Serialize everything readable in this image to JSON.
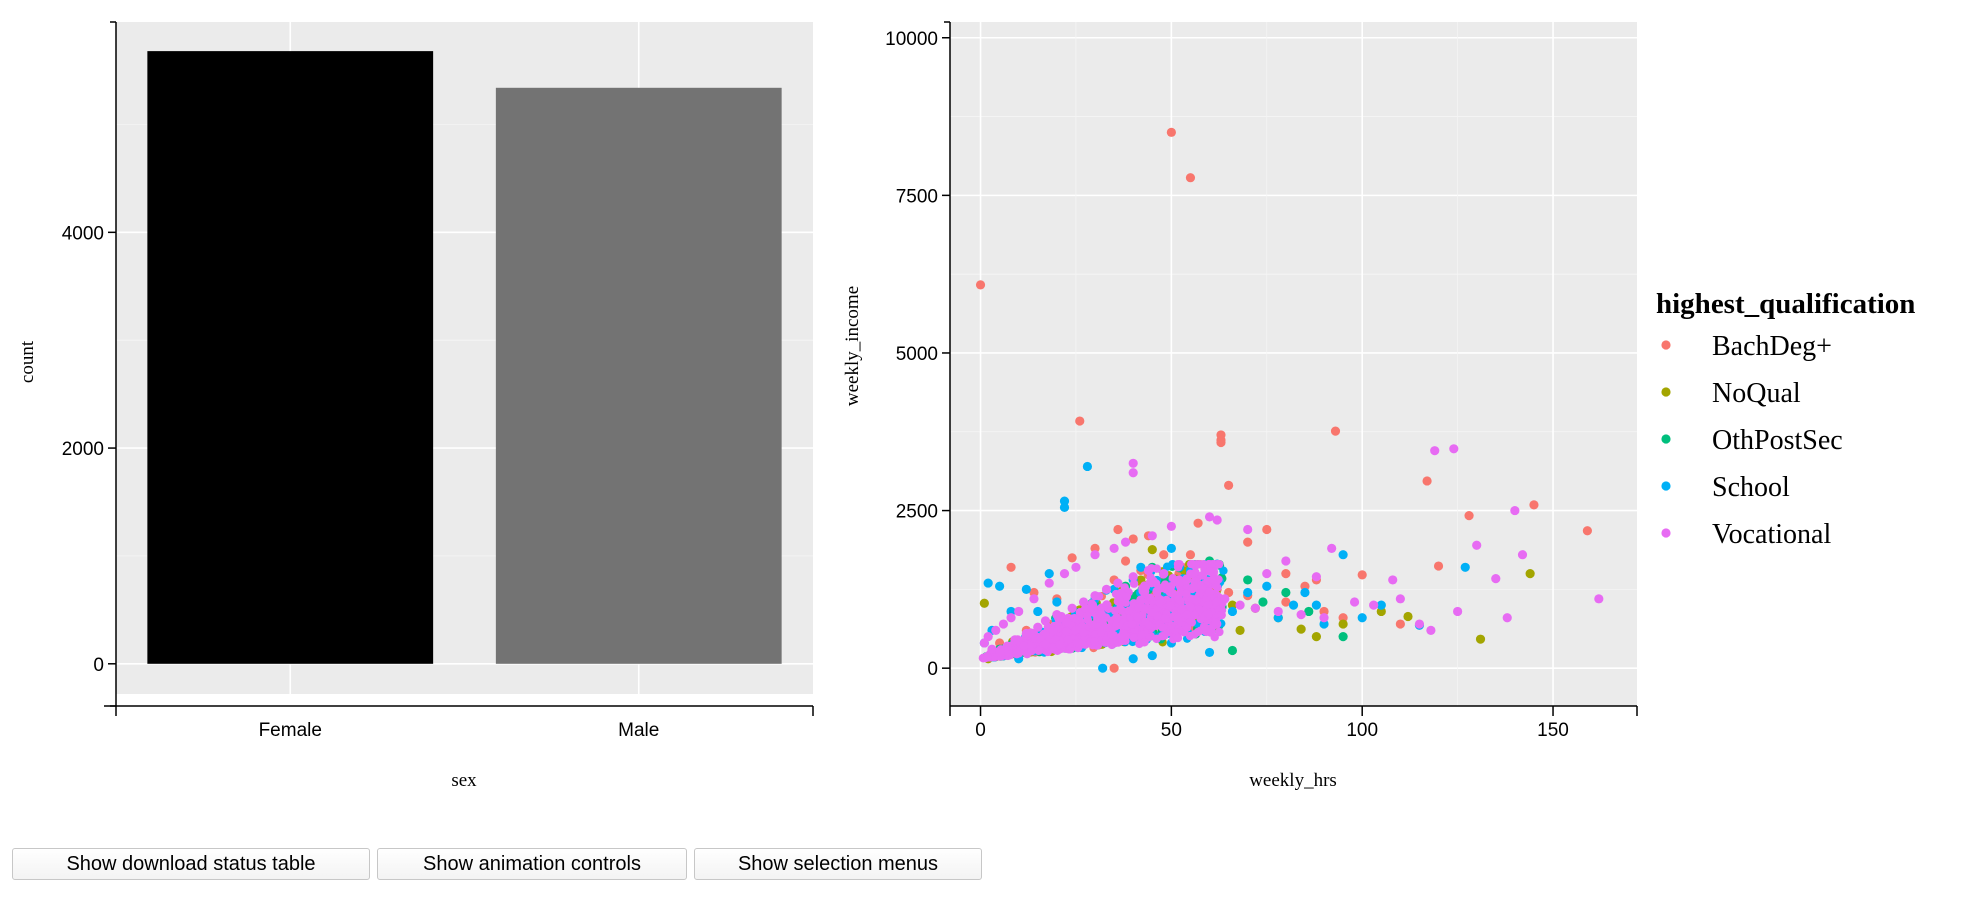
{
  "chart_data": [
    {
      "type": "bar",
      "categories": [
        "Female",
        "Male"
      ],
      "values": [
        5680,
        5340
      ],
      "fills": [
        "#000000",
        "#737373"
      ],
      "xlabel": "sex",
      "ylabel": "count",
      "yticks": [
        0,
        2000,
        4000
      ],
      "ylim": [
        -280,
        5950
      ],
      "grid": true
    },
    {
      "type": "scatter",
      "xlabel": "weekly_hrs",
      "ylabel": "weekly_income",
      "xticks": [
        0,
        50,
        100,
        150
      ],
      "yticks": [
        0,
        2500,
        5000,
        7500,
        10000
      ],
      "xlim": [
        -8,
        172
      ],
      "ylim": [
        -600,
        10250
      ],
      "grid": true,
      "legend": {
        "title": "highest_qualification",
        "position": "right"
      },
      "series": [
        {
          "name": "BachDeg+",
          "color": "#F8766D",
          "points": [
            [
              0,
              6080
            ],
            [
              50,
              8500
            ],
            [
              55,
              7780
            ],
            [
              26,
              3920
            ],
            [
              63,
              3700
            ],
            [
              63,
              3620
            ],
            [
              63,
              3580
            ],
            [
              93,
              3760
            ],
            [
              65,
              2900
            ],
            [
              117,
              2970
            ],
            [
              128,
              2420
            ],
            [
              145,
              2590
            ],
            [
              159,
              2180
            ],
            [
              57,
              2300
            ],
            [
              40,
              2050
            ],
            [
              100,
              1480
            ],
            [
              120,
              1620
            ],
            [
              36,
              2200
            ],
            [
              44,
              2100
            ],
            [
              30,
              1900
            ],
            [
              70,
              2000
            ],
            [
              75,
              2200
            ],
            [
              80,
              1500
            ],
            [
              85,
              1300
            ],
            [
              88,
              1400
            ],
            [
              60,
              1600
            ],
            [
              65,
              1200
            ],
            [
              24,
              1750
            ],
            [
              8,
              1600
            ],
            [
              14,
              1200
            ],
            [
              20,
              1100
            ],
            [
              35,
              1400
            ],
            [
              48,
              1800
            ],
            [
              52,
              1500
            ],
            [
              58,
              1350
            ],
            [
              70,
              1150
            ],
            [
              80,
              1050
            ],
            [
              90,
              900
            ],
            [
              95,
              800
            ],
            [
              110,
              700
            ],
            [
              35,
              0
            ],
            [
              45,
              950
            ],
            [
              28,
              800
            ],
            [
              18,
              700
            ],
            [
              12,
              600
            ],
            [
              5,
              400
            ],
            [
              38,
              1700
            ],
            [
              42,
              1550
            ],
            [
              55,
              1800
            ],
            [
              62,
              1250
            ]
          ]
        },
        {
          "name": "NoQual",
          "color": "#A3A500",
          "points": [
            [
              1,
              1030
            ],
            [
              45,
              1880
            ],
            [
              144,
              1500
            ],
            [
              131,
              460
            ],
            [
              105,
              900
            ],
            [
              95,
              700
            ],
            [
              88,
              500
            ],
            [
              78,
              800
            ],
            [
              68,
              600
            ],
            [
              60,
              1100
            ],
            [
              55,
              900
            ],
            [
              50,
              1200
            ],
            [
              40,
              800
            ],
            [
              35,
              650
            ],
            [
              30,
              600
            ],
            [
              25,
              500
            ],
            [
              20,
              450
            ],
            [
              15,
              400
            ],
            [
              10,
              300
            ],
            [
              5,
              200
            ],
            [
              2,
              150
            ],
            [
              72,
              950
            ],
            [
              84,
              620
            ],
            [
              112,
              820
            ],
            [
              66,
              1000
            ],
            [
              42,
              1400
            ],
            [
              38,
              1100
            ],
            [
              26,
              900
            ],
            [
              18,
              650
            ],
            [
              48,
              700
            ]
          ]
        },
        {
          "name": "OthPostSec",
          "color": "#00BF7D",
          "points": [
            [
              70,
              1400
            ],
            [
              80,
              1200
            ],
            [
              95,
              500
            ],
            [
              60,
              1700
            ],
            [
              55,
              1500
            ],
            [
              45,
              1600
            ],
            [
              38,
              1300
            ],
            [
              30,
              1000
            ],
            [
              25,
              800
            ],
            [
              20,
              650
            ],
            [
              15,
              500
            ],
            [
              10,
              400
            ],
            [
              5,
              300
            ],
            [
              66,
              280
            ],
            [
              52,
              900
            ],
            [
              42,
              1100
            ],
            [
              34,
              850
            ],
            [
              28,
              700
            ],
            [
              58,
              1250
            ],
            [
              74,
              1050
            ],
            [
              86,
              900
            ],
            [
              48,
              1350
            ],
            [
              22,
              600
            ],
            [
              12,
              450
            ]
          ]
        },
        {
          "name": "School",
          "color": "#00B0F6",
          "points": [
            [
              22,
              2650
            ],
            [
              22,
              2550
            ],
            [
              28,
              3200
            ],
            [
              42,
              1600
            ],
            [
              50,
              1900
            ],
            [
              55,
              1550
            ],
            [
              62,
              1650
            ],
            [
              75,
              1300
            ],
            [
              85,
              1200
            ],
            [
              95,
              1800
            ],
            [
              127,
              1600
            ],
            [
              105,
              1000
            ],
            [
              2,
              1350
            ],
            [
              5,
              1300
            ],
            [
              18,
              1500
            ],
            [
              12,
              1250
            ],
            [
              8,
              900
            ],
            [
              3,
              600
            ],
            [
              1,
              400
            ],
            [
              6,
              200
            ],
            [
              10,
              150
            ],
            [
              30,
              1100
            ],
            [
              35,
              1250
            ],
            [
              40,
              1400
            ],
            [
              45,
              1300
            ],
            [
              60,
              1350
            ],
            [
              70,
              1200
            ],
            [
              82,
              1000
            ],
            [
              88,
              1000
            ],
            [
              100,
              800
            ],
            [
              115,
              680
            ],
            [
              25,
              700
            ],
            [
              50,
              400
            ],
            [
              45,
              200
            ],
            [
              40,
              150
            ],
            [
              32,
              0
            ],
            [
              60,
              250
            ],
            [
              15,
              900
            ],
            [
              20,
              1050
            ],
            [
              36,
              950
            ],
            [
              48,
              1500
            ],
            [
              56,
              1100
            ],
            [
              66,
              900
            ],
            [
              90,
              700
            ],
            [
              78,
              800
            ]
          ]
        },
        {
          "name": "Vocational",
          "color": "#E76BF3",
          "points": [
            [
              40,
              3250
            ],
            [
              40,
              3100
            ],
            [
              119,
              3450
            ],
            [
              124,
              3480
            ],
            [
              140,
              2500
            ],
            [
              130,
              1950
            ],
            [
              162,
              1100
            ],
            [
              138,
              800
            ],
            [
              118,
              600
            ],
            [
              115,
              700
            ],
            [
              108,
              1400
            ],
            [
              103,
              1000
            ],
            [
              92,
              1900
            ],
            [
              88,
              1450
            ],
            [
              80,
              1700
            ],
            [
              75,
              1500
            ],
            [
              70,
              2200
            ],
            [
              60,
              2400
            ],
            [
              62,
              2350
            ],
            [
              50,
              2250
            ],
            [
              45,
              2100
            ],
            [
              38,
              2000
            ],
            [
              35,
              1900
            ],
            [
              30,
              1800
            ],
            [
              25,
              1600
            ],
            [
              22,
              1500
            ],
            [
              18,
              1350
            ],
            [
              14,
              1100
            ],
            [
              10,
              900
            ],
            [
              8,
              800
            ],
            [
              6,
              700
            ],
            [
              4,
              600
            ],
            [
              2,
              500
            ],
            [
              1,
              400
            ],
            [
              3,
              300
            ],
            [
              5,
              250
            ],
            [
              7,
              350
            ],
            [
              9,
              450
            ],
            [
              12,
              550
            ],
            [
              15,
              650
            ],
            [
              17,
              750
            ],
            [
              20,
              850
            ],
            [
              24,
              950
            ],
            [
              27,
              1050
            ],
            [
              30,
              1150
            ],
            [
              33,
              1250
            ],
            [
              36,
              1350
            ],
            [
              40,
              1450
            ],
            [
              44,
              1550
            ],
            [
              48,
              1500
            ],
            [
              52,
              1400
            ],
            [
              56,
              1300
            ],
            [
              60,
              1200
            ],
            [
              64,
              1100
            ],
            [
              68,
              1000
            ],
            [
              72,
              950
            ],
            [
              78,
              900
            ],
            [
              84,
              850
            ],
            [
              90,
              800
            ],
            [
              98,
              1050
            ],
            [
              135,
              1420
            ],
            [
              142,
              1800
            ],
            [
              110,
              1100
            ],
            [
              125,
              900
            ]
          ]
        }
      ]
    }
  ],
  "controls": {
    "download_label": "Show download status table",
    "animation_label": "Show animation controls",
    "selection_label": "Show selection menus"
  }
}
